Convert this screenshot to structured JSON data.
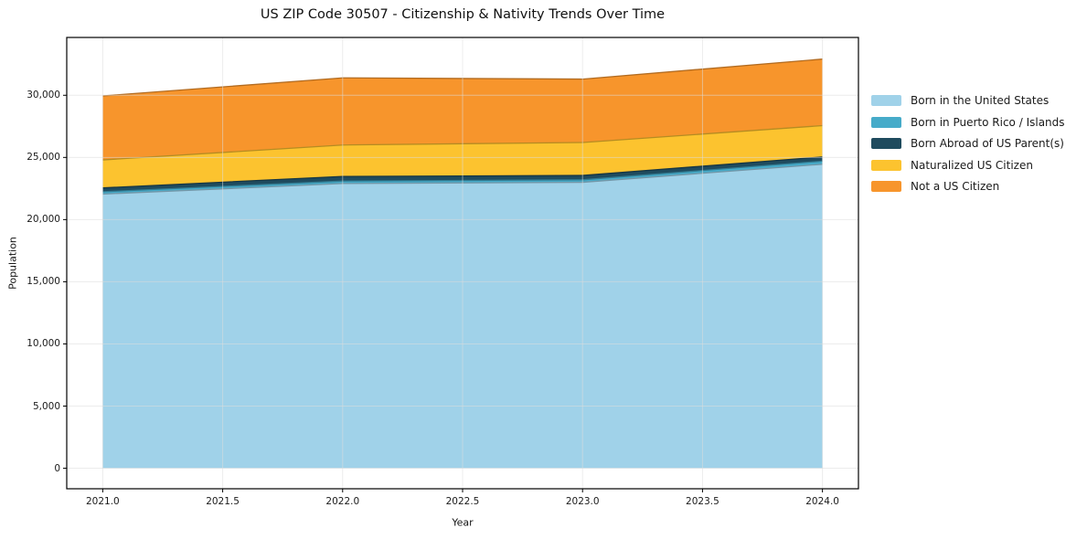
{
  "title": "US ZIP Code 30507 - Citizenship & Nativity Trends Over Time",
  "chart_data": {
    "type": "area",
    "stacked": true,
    "title": "US ZIP Code 30507 - Citizenship & Nativity Trends Over Time",
    "xlabel": "Year",
    "ylabel": "Population",
    "x": [
      2021,
      2022,
      2023,
      2024
    ],
    "series": [
      {
        "name": "Born in the United States",
        "color": "#a0d2e9",
        "values": [
          22050,
          22900,
          23000,
          24450
        ]
      },
      {
        "name": "Born in Puerto Rico / Islands",
        "color": "#46abc9",
        "values": [
          190,
          200,
          200,
          250
        ]
      },
      {
        "name": "Born Abroad of US Parent(s)",
        "color": "#1f4b5e",
        "values": [
          310,
          370,
          350,
          340
        ]
      },
      {
        "name": "Naturalized US Citizen",
        "color": "#fcc32f",
        "values": [
          2250,
          2530,
          2650,
          2520
        ]
      },
      {
        "name": "Not a US Citizen",
        "color": "#f7952c",
        "values": [
          5150,
          5400,
          5100,
          5350
        ]
      }
    ],
    "totals": [
      29950,
      31400,
      31300,
      32910
    ],
    "xlim": [
      2020.85,
      2024.15
    ],
    "ylim": [
      -1650,
      34650
    ],
    "x_ticks": [
      2021.0,
      2021.5,
      2022.0,
      2022.5,
      2023.0,
      2023.5,
      2024.0
    ],
    "x_tick_labels": [
      "2021.0",
      "2021.5",
      "2022.0",
      "2022.5",
      "2023.0",
      "2023.5",
      "2024.0"
    ],
    "y_ticks": [
      0,
      5000,
      10000,
      15000,
      20000,
      25000,
      30000
    ],
    "y_tick_labels": [
      "0",
      "5,000",
      "10,000",
      "15,000",
      "20,000",
      "25,000",
      "30,000"
    ],
    "grid": true,
    "legend_position": "right"
  },
  "colors": {
    "spine": "#000000",
    "grid": "#dcdcdc",
    "background": "#ffffff"
  }
}
